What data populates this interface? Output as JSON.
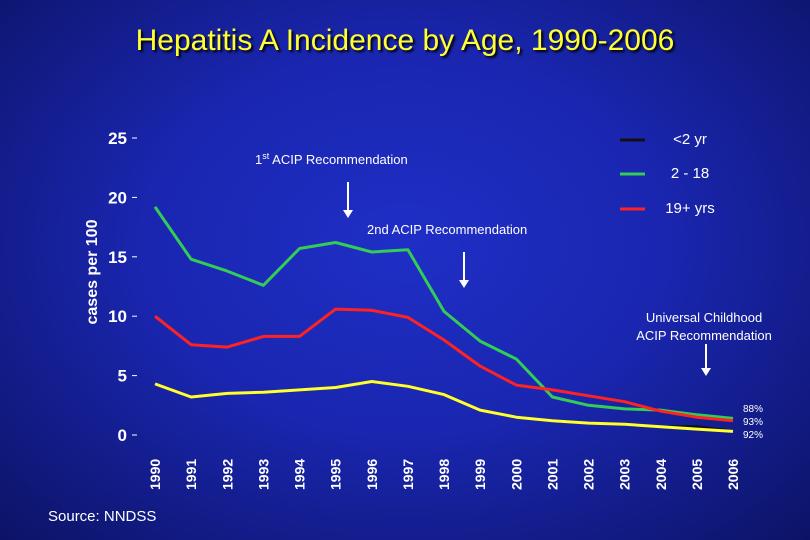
{
  "title": "Hepatitis A Incidence by Age, 1990-2006",
  "source": "Source: NNDSS",
  "chart_data": {
    "type": "line",
    "title": "Hepatitis A Incidence by Age, 1990-2006",
    "xlabel": "",
    "ylabel": "cases per 100",
    "ylim": [
      0,
      25
    ],
    "yticks": [
      "0",
      "5",
      "10",
      "15",
      "20",
      "25"
    ],
    "x": [
      "1990",
      "1991",
      "1992",
      "1993",
      "1994",
      "1995",
      "1996",
      "1997",
      "1998",
      "1999",
      "2000",
      "2001",
      "2002",
      "2003",
      "2004",
      "2005",
      "2006"
    ],
    "series": [
      {
        "name": "<2 yr",
        "color": "#111111",
        "values": [
          4.3,
          3.2,
          3.5,
          3.6,
          3.8,
          4.0,
          4.5,
          4.1,
          3.4,
          2.1,
          1.5,
          1.2,
          1.0,
          0.9,
          0.7,
          0.7,
          0.3
        ]
      },
      {
        "name": "2 - 18",
        "color": "#33cc55",
        "values": [
          19.2,
          14.8,
          13.8,
          12.6,
          15.7,
          16.2,
          15.4,
          15.6,
          10.4,
          7.9,
          6.4,
          3.2,
          2.5,
          2.2,
          2.1,
          1.7,
          1.4
        ]
      },
      {
        "name": "19+ yrs",
        "color": "#ff2222",
        "values": [
          10.0,
          7.6,
          7.4,
          8.3,
          8.3,
          10.6,
          10.5,
          9.9,
          8.0,
          5.8,
          4.2,
          3.8,
          3.3,
          2.8,
          2.0,
          1.5,
          1.2
        ]
      },
      {
        "name": "",
        "color": "#ffff33",
        "values": [
          4.3,
          3.2,
          3.5,
          3.6,
          3.8,
          4.0,
          4.5,
          4.1,
          3.4,
          2.1,
          1.5,
          1.2,
          1.0,
          0.9,
          0.7,
          0.5,
          0.3
        ]
      }
    ],
    "legend": {
      "placement": "top-right",
      "entries": [
        "<2 yr",
        "2 - 18",
        "19+ yrs"
      ]
    },
    "annotations": [
      {
        "text_sup": "st",
        "text_pre": "1",
        "text_post": " ACIP Recommendation",
        "year": "1995"
      },
      {
        "text": "2nd ACIP Recommendation",
        "year": "1999"
      },
      {
        "text_line1": "Universal Childhood",
        "text_line2": "ACIP Recommendation",
        "year": "2006"
      }
    ],
    "end_labels": [
      "88%",
      "93%",
      "92%"
    ]
  }
}
